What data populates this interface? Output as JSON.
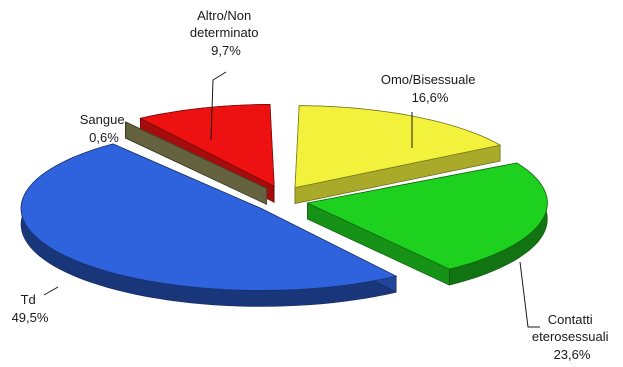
{
  "chart_data": {
    "type": "pie",
    "style": "3d-exploded",
    "title": "",
    "slices": [
      {
        "name": "Omo/Bisessuale",
        "lines": [
          "Omo/Bisessuale"
        ],
        "value_label": "16,6%",
        "value": 16.6,
        "color": "#f2f23c"
      },
      {
        "name": "Contatti eterosessuali",
        "lines": [
          "Contatti",
          "eterosessuali"
        ],
        "value_label": "23,6%",
        "value": 23.6,
        "color": "#1fd11f"
      },
      {
        "name": "Td",
        "lines": [
          "Td"
        ],
        "value_label": "49,5%",
        "value": 49.5,
        "color": "#2f63dd"
      },
      {
        "name": "Sangue",
        "lines": [
          "Sangue"
        ],
        "value_label": "0,6%",
        "value": 0.6,
        "color": "#8f8c5a"
      },
      {
        "name": "Altro/Non determinato",
        "lines": [
          "Altro/Non",
          "determinato"
        ],
        "value_label": "9,7%",
        "value": 9.7,
        "color": "#ee1111"
      }
    ]
  }
}
